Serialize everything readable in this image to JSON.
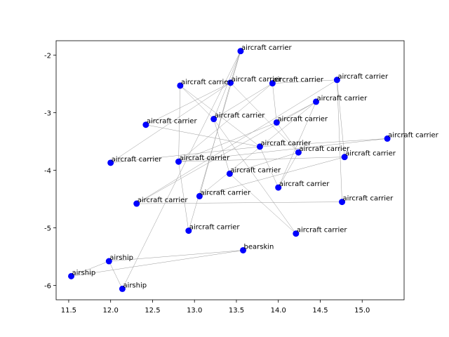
{
  "chart_data": {
    "type": "scatter",
    "title": "",
    "xlabel": "",
    "ylabel": "",
    "xlim": [
      11.35,
      15.5
    ],
    "ylim": [
      -6.25,
      -1.75
    ],
    "xticks": [
      "11.5",
      "12.0",
      "12.5",
      "13.0",
      "13.5",
      "14.0",
      "14.5",
      "15.0"
    ],
    "yticks": [
      "-2",
      "-3",
      "-4",
      "-5",
      "-6"
    ],
    "xtick_values": [
      11.5,
      12.0,
      12.5,
      13.0,
      13.5,
      14.0,
      14.5,
      15.0
    ],
    "ytick_values": [
      -2,
      -3,
      -4,
      -5,
      -6
    ],
    "grid": false,
    "point_color": "#0000ff",
    "edge_color": "#999999",
    "points": [
      {
        "label": "aircraft carrier",
        "x": 13.55,
        "y": -1.93
      },
      {
        "label": "aircraft carrier",
        "x": 13.43,
        "y": -2.48
      },
      {
        "label": "aircraft carrier",
        "x": 13.93,
        "y": -2.49
      },
      {
        "label": "aircraft carrier",
        "x": 14.7,
        "y": -2.43
      },
      {
        "label": "aircraft carrier",
        "x": 12.83,
        "y": -2.53
      },
      {
        "label": "aircraft carrier",
        "x": 14.45,
        "y": -2.81
      },
      {
        "label": "aircraft carrier",
        "x": 13.23,
        "y": -3.11
      },
      {
        "label": "aircraft carrier",
        "x": 13.98,
        "y": -3.17
      },
      {
        "label": "aircraft carrier",
        "x": 12.42,
        "y": -3.21
      },
      {
        "label": "aircraft carrier",
        "x": 15.3,
        "y": -3.45
      },
      {
        "label": "aircraft carrier",
        "x": 13.78,
        "y": -3.59
      },
      {
        "label": "aircraft carrier",
        "x": 14.24,
        "y": -3.69
      },
      {
        "label": "aircraft carrier",
        "x": 14.79,
        "y": -3.77
      },
      {
        "label": "aircraft carrier",
        "x": 12.81,
        "y": -3.85
      },
      {
        "label": "aircraft carrier",
        "x": 12.0,
        "y": -3.87
      },
      {
        "label": "aircraft carrier",
        "x": 13.42,
        "y": -4.06
      },
      {
        "label": "aircraft carrier",
        "x": 14.0,
        "y": -4.3
      },
      {
        "label": "aircraft carrier",
        "x": 13.06,
        "y": -4.45
      },
      {
        "label": "aircraft carrier",
        "x": 14.76,
        "y": -4.55
      },
      {
        "label": "aircraft carrier",
        "x": 12.31,
        "y": -4.58
      },
      {
        "label": "aircraft carrier",
        "x": 12.93,
        "y": -5.05
      },
      {
        "label": "aircraft carrier",
        "x": 14.21,
        "y": -5.1
      },
      {
        "label": "bearskin",
        "x": 13.58,
        "y": -5.39
      },
      {
        "label": "airship",
        "x": 11.98,
        "y": -5.58
      },
      {
        "label": "airship",
        "x": 11.53,
        "y": -5.84
      },
      {
        "label": "airship",
        "x": 12.14,
        "y": -6.06
      }
    ],
    "edges": [
      [
        0,
        6
      ],
      [
        0,
        20
      ],
      [
        0,
        1
      ],
      [
        1,
        8
      ],
      [
        1,
        17
      ],
      [
        1,
        11
      ],
      [
        2,
        7
      ],
      [
        2,
        3
      ],
      [
        3,
        12
      ],
      [
        3,
        18
      ],
      [
        3,
        19
      ],
      [
        4,
        10
      ],
      [
        4,
        13
      ],
      [
        5,
        16
      ],
      [
        5,
        19
      ],
      [
        5,
        7
      ],
      [
        6,
        21
      ],
      [
        6,
        15
      ],
      [
        6,
        4
      ],
      [
        7,
        13
      ],
      [
        8,
        10
      ],
      [
        9,
        13
      ],
      [
        9,
        10
      ],
      [
        10,
        14
      ],
      [
        11,
        15
      ],
      [
        12,
        13
      ],
      [
        13,
        20
      ],
      [
        14,
        1
      ],
      [
        15,
        21
      ],
      [
        16,
        11
      ],
      [
        17,
        5
      ],
      [
        18,
        19
      ],
      [
        0,
        25
      ],
      [
        22,
        24
      ],
      [
        23,
        24
      ],
      [
        23,
        25
      ],
      [
        22,
        23
      ],
      [
        12,
        17
      ],
      [
        2,
        13
      ],
      [
        11,
        7
      ],
      [
        16,
        10
      ],
      [
        6,
        2
      ]
    ]
  }
}
